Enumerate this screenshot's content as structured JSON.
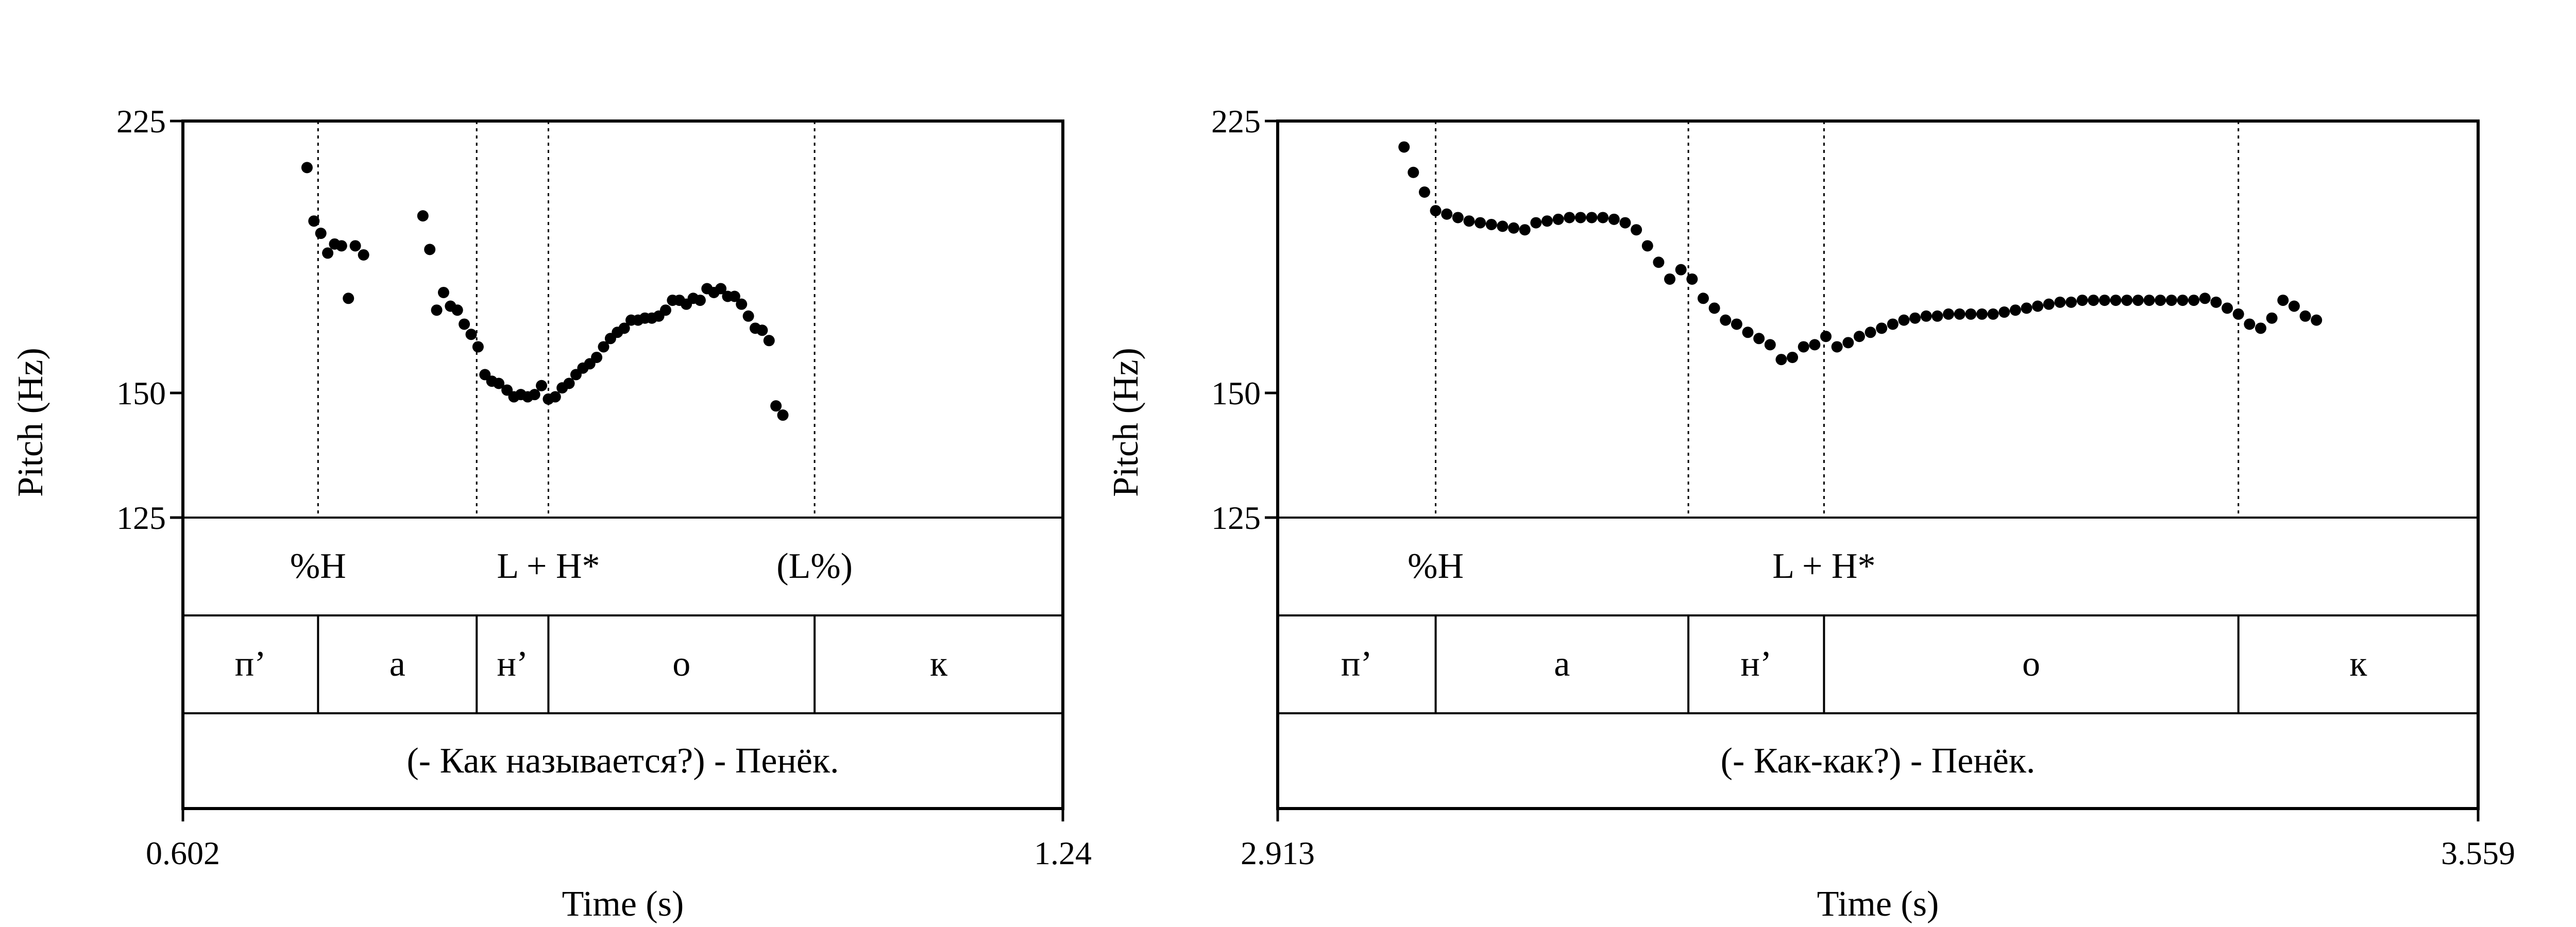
{
  "chart_data": [
    {
      "type": "scatter",
      "xlabel": "Time (s)",
      "ylabel": "Pitch (Hz)",
      "xlim": [
        0.602,
        1.24
      ],
      "ylim": [
        125,
        225
      ],
      "y_scale": "log",
      "x_tick_labels": [
        "0.602",
        "1.24"
      ],
      "y_ticks": [
        125,
        150,
        225
      ],
      "y_tick_labels": [
        "125",
        "150",
        "225"
      ],
      "grid": false,
      "boundaries": [
        0.7,
        0.815,
        0.867,
        1.06
      ],
      "tone_labels": [
        {
          "time": 0.7,
          "text": "%H"
        },
        {
          "time": 0.867,
          "text": "L + H*"
        },
        {
          "time": 1.06,
          "text": "(L%)"
        }
      ],
      "segments": [
        {
          "start": 0.602,
          "end": 0.7,
          "text": "п’"
        },
        {
          "start": 0.7,
          "end": 0.815,
          "text": "а"
        },
        {
          "start": 0.815,
          "end": 0.867,
          "text": "н’"
        },
        {
          "start": 0.867,
          "end": 1.06,
          "text": "о"
        },
        {
          "start": 1.06,
          "end": 1.24,
          "text": "к"
        }
      ],
      "sentence": "(- Как называется?) - Пенёк.",
      "points": [
        [
          0.692,
          210.0
        ],
        [
          0.697,
          194.0
        ],
        [
          0.702,
          190.5
        ],
        [
          0.707,
          185.0
        ],
        [
          0.712,
          187.5
        ],
        [
          0.717,
          187.0
        ],
        [
          0.722,
          173.0
        ],
        [
          0.727,
          187.0
        ],
        [
          0.733,
          184.5
        ],
        [
          0.776,
          195.5
        ],
        [
          0.781,
          186.0
        ],
        [
          0.786,
          170.0
        ],
        [
          0.791,
          174.5
        ],
        [
          0.796,
          171.0
        ],
        [
          0.801,
          170.0
        ],
        [
          0.806,
          166.5
        ],
        [
          0.811,
          164.0
        ],
        [
          0.816,
          161.0
        ],
        [
          0.821,
          154.5
        ],
        [
          0.826,
          153.0
        ],
        [
          0.831,
          152.5
        ],
        [
          0.837,
          151.0
        ],
        [
          0.842,
          149.5
        ],
        [
          0.847,
          150.0
        ],
        [
          0.852,
          149.5
        ],
        [
          0.857,
          150.0
        ],
        [
          0.862,
          152.0
        ],
        [
          0.867,
          149.0
        ],
        [
          0.872,
          149.5
        ],
        [
          0.877,
          151.5
        ],
        [
          0.882,
          152.5
        ],
        [
          0.887,
          154.5
        ],
        [
          0.892,
          156.0
        ],
        [
          0.897,
          157.0
        ],
        [
          0.902,
          158.5
        ],
        [
          0.907,
          161.0
        ],
        [
          0.912,
          163.0
        ],
        [
          0.917,
          164.5
        ],
        [
          0.922,
          165.5
        ],
        [
          0.927,
          167.5
        ],
        [
          0.932,
          167.5
        ],
        [
          0.937,
          168.0
        ],
        [
          0.942,
          168.0
        ],
        [
          0.947,
          168.5
        ],
        [
          0.952,
          170.0
        ],
        [
          0.957,
          172.5
        ],
        [
          0.962,
          172.5
        ],
        [
          0.967,
          171.5
        ],
        [
          0.972,
          173.0
        ],
        [
          0.977,
          172.5
        ],
        [
          0.982,
          175.5
        ],
        [
          0.987,
          174.5
        ],
        [
          0.992,
          175.5
        ],
        [
          0.997,
          173.5
        ],
        [
          1.002,
          173.5
        ],
        [
          1.007,
          171.5
        ],
        [
          1.012,
          168.5
        ],
        [
          1.017,
          165.5
        ],
        [
          1.022,
          165.0
        ],
        [
          1.027,
          162.5
        ],
        [
          1.032,
          147.5
        ],
        [
          1.037,
          145.5
        ]
      ]
    },
    {
      "type": "scatter",
      "xlabel": "Time (s)",
      "ylabel": "Pitch (Hz)",
      "xlim": [
        2.913,
        3.559
      ],
      "ylim": [
        125,
        225
      ],
      "y_scale": "log",
      "x_tick_labels": [
        "2.913",
        "3.559"
      ],
      "y_ticks": [
        125,
        150,
        225
      ],
      "y_tick_labels": [
        "125",
        "150",
        "225"
      ],
      "grid": false,
      "boundaries": [
        2.998,
        3.134,
        3.207,
        3.43
      ],
      "tone_labels": [
        {
          "time": 2.998,
          "text": "%H"
        },
        {
          "time": 3.207,
          "text": "L + H*"
        }
      ],
      "segments": [
        {
          "start": 2.913,
          "end": 2.998,
          "text": "п’"
        },
        {
          "start": 2.998,
          "end": 3.134,
          "text": "а"
        },
        {
          "start": 3.134,
          "end": 3.207,
          "text": "н’"
        },
        {
          "start": 3.207,
          "end": 3.43,
          "text": "о"
        },
        {
          "start": 3.43,
          "end": 3.559,
          "text": "к"
        }
      ],
      "sentence": "(- Как-как?) - Пенёк.",
      "points": [
        [
          2.981,
          216.5
        ],
        [
          2.986,
          208.5
        ],
        [
          2.992,
          202.5
        ],
        [
          2.998,
          197.0
        ],
        [
          3.004,
          196.0
        ],
        [
          3.01,
          195.0
        ],
        [
          3.016,
          194.0
        ],
        [
          3.022,
          193.5
        ],
        [
          3.028,
          193.0
        ],
        [
          3.034,
          192.5
        ],
        [
          3.04,
          192.0
        ],
        [
          3.046,
          191.5
        ],
        [
          3.052,
          193.5
        ],
        [
          3.058,
          194.0
        ],
        [
          3.064,
          194.5
        ],
        [
          3.07,
          195.0
        ],
        [
          3.076,
          195.0
        ],
        [
          3.082,
          195.0
        ],
        [
          3.088,
          195.0
        ],
        [
          3.094,
          194.5
        ],
        [
          3.1,
          193.5
        ],
        [
          3.106,
          191.5
        ],
        [
          3.112,
          187.0
        ],
        [
          3.118,
          182.5
        ],
        [
          3.124,
          178.0
        ],
        [
          3.13,
          180.5
        ],
        [
          3.136,
          178.0
        ],
        [
          3.142,
          173.0
        ],
        [
          3.148,
          170.5
        ],
        [
          3.154,
          167.5
        ],
        [
          3.16,
          166.5
        ],
        [
          3.166,
          164.5
        ],
        [
          3.172,
          163.0
        ],
        [
          3.178,
          161.5
        ],
        [
          3.184,
          158.0
        ],
        [
          3.19,
          158.5
        ],
        [
          3.196,
          161.0
        ],
        [
          3.202,
          161.5
        ],
        [
          3.208,
          163.5
        ],
        [
          3.214,
          161.0
        ],
        [
          3.22,
          162.0
        ],
        [
          3.226,
          163.5
        ],
        [
          3.232,
          164.5
        ],
        [
          3.238,
          165.5
        ],
        [
          3.244,
          166.5
        ],
        [
          3.25,
          167.5
        ],
        [
          3.256,
          168.0
        ],
        [
          3.262,
          168.5
        ],
        [
          3.268,
          168.5
        ],
        [
          3.274,
          169.0
        ],
        [
          3.28,
          169.0
        ],
        [
          3.286,
          169.0
        ],
        [
          3.292,
          169.0
        ],
        [
          3.298,
          169.0
        ],
        [
          3.304,
          169.5
        ],
        [
          3.31,
          170.0
        ],
        [
          3.316,
          170.5
        ],
        [
          3.322,
          171.0
        ],
        [
          3.328,
          171.5
        ],
        [
          3.334,
          172.0
        ],
        [
          3.34,
          172.0
        ],
        [
          3.346,
          172.5
        ],
        [
          3.352,
          172.5
        ],
        [
          3.358,
          172.5
        ],
        [
          3.364,
          172.5
        ],
        [
          3.37,
          172.5
        ],
        [
          3.376,
          172.5
        ],
        [
          3.382,
          172.5
        ],
        [
          3.388,
          172.5
        ],
        [
          3.394,
          172.5
        ],
        [
          3.4,
          172.5
        ],
        [
          3.406,
          172.5
        ],
        [
          3.412,
          173.0
        ],
        [
          3.418,
          172.0
        ],
        [
          3.424,
          170.5
        ],
        [
          3.43,
          169.0
        ],
        [
          3.436,
          166.5
        ],
        [
          3.442,
          165.5
        ],
        [
          3.448,
          168.0
        ],
        [
          3.454,
          172.5
        ],
        [
          3.46,
          171.0
        ],
        [
          3.466,
          168.5
        ],
        [
          3.472,
          167.5
        ]
      ]
    }
  ]
}
